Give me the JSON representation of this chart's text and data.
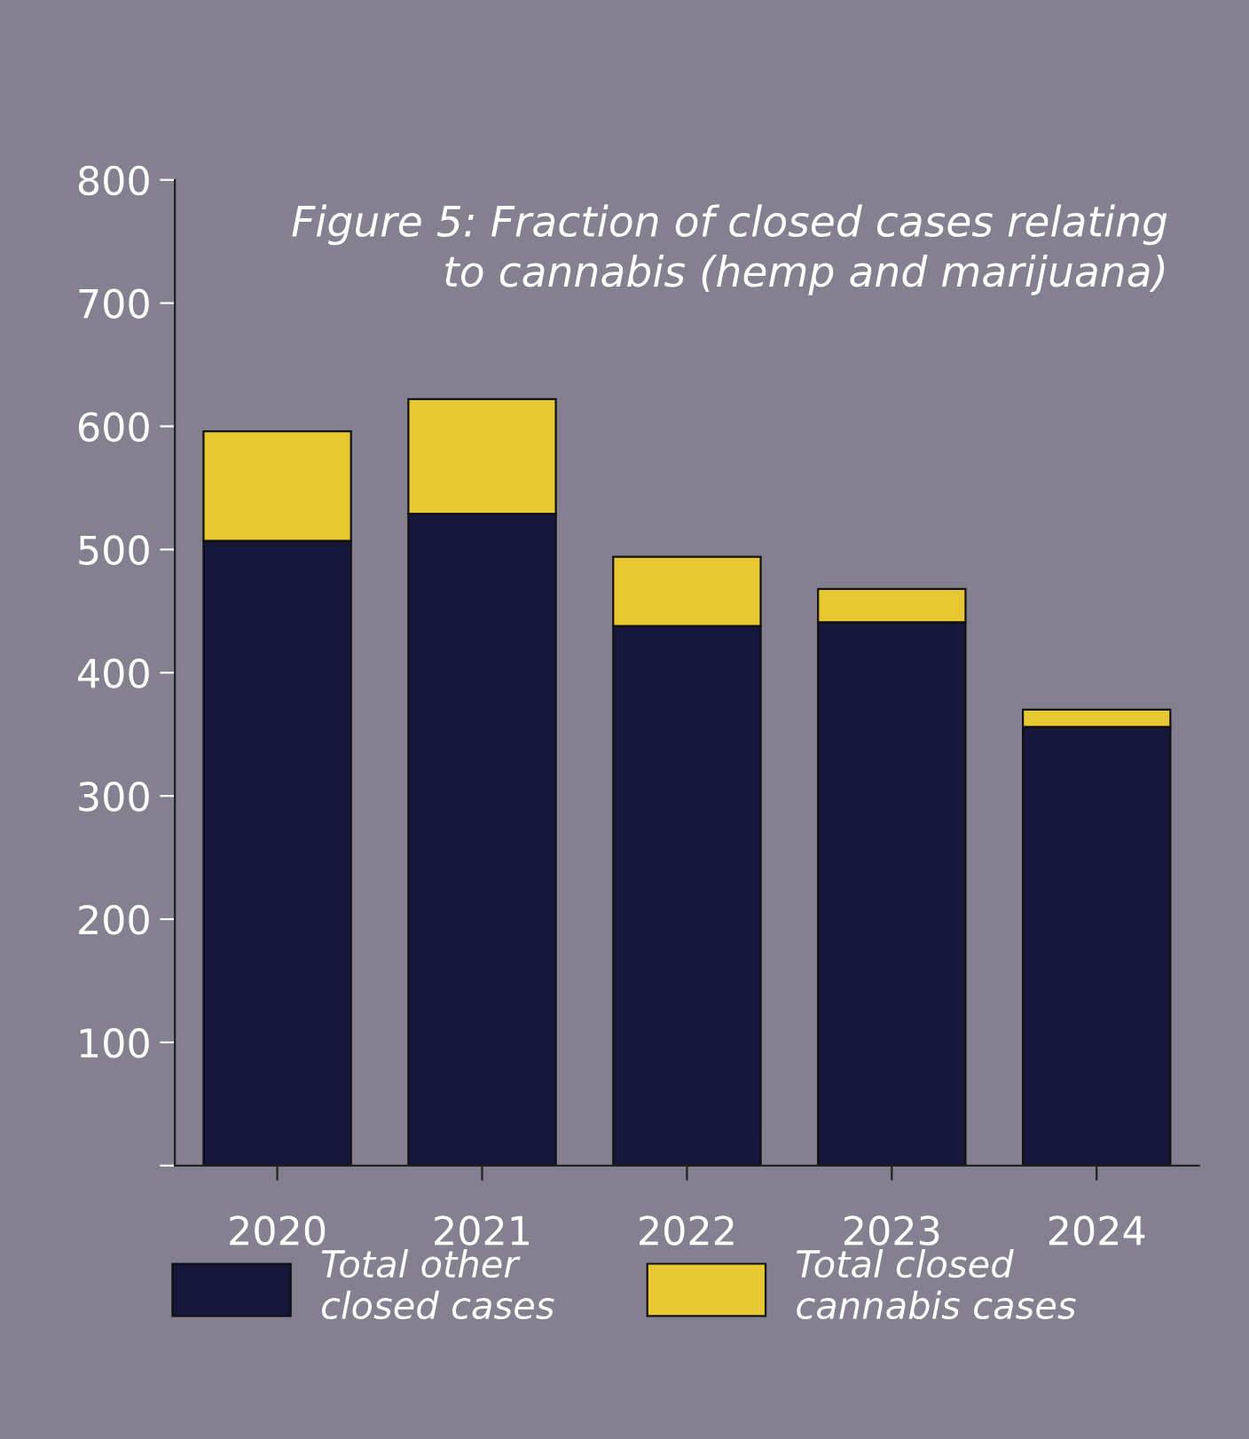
{
  "chart_data": {
    "type": "bar",
    "title": "Figure 5: Fraction of closed cases relating\nto cannabis (hemp and marijuana)",
    "categories": [
      "2020",
      "2021",
      "2022",
      "2023",
      "2024"
    ],
    "stacked": true,
    "series": [
      {
        "name": "Total other\nclosed cases",
        "color": "#16173a",
        "values": [
          507,
          529,
          438,
          441,
          356
        ]
      },
      {
        "name": "Total closed\ncannabis cases",
        "color": "#e8c832",
        "values": [
          89,
          93,
          56,
          27,
          14
        ]
      }
    ],
    "ylim": [
      0,
      800
    ],
    "yticks": [
      {
        "value": 0,
        "label": null
      },
      100,
      200,
      300,
      400,
      500,
      600,
      700,
      800
    ],
    "grid": false,
    "legend": "bottom"
  }
}
